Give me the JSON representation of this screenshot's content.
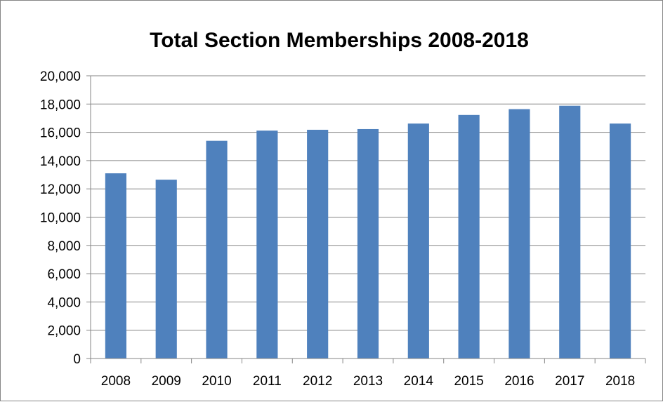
{
  "chart_data": {
    "type": "bar",
    "title": "Total Section Memberships 2008-2018",
    "xlabel": "",
    "ylabel": "",
    "categories": [
      "2008",
      "2009",
      "2010",
      "2011",
      "2012",
      "2013",
      "2014",
      "2015",
      "2016",
      "2017",
      "2018"
    ],
    "values": [
      13100,
      12650,
      15400,
      16120,
      16180,
      16230,
      16620,
      17230,
      17640,
      17880,
      16620
    ],
    "ylim": [
      0,
      20000
    ],
    "yticks": [
      0,
      2000,
      4000,
      6000,
      8000,
      10000,
      12000,
      14000,
      16000,
      18000,
      20000
    ],
    "ytick_labels": [
      "0",
      "2,000",
      "4,000",
      "6,000",
      "8,000",
      "10,000",
      "12,000",
      "14,000",
      "16,000",
      "18,000",
      "20,000"
    ],
    "bar_color": "#4f81bd",
    "grid": true,
    "legend": "none"
  }
}
